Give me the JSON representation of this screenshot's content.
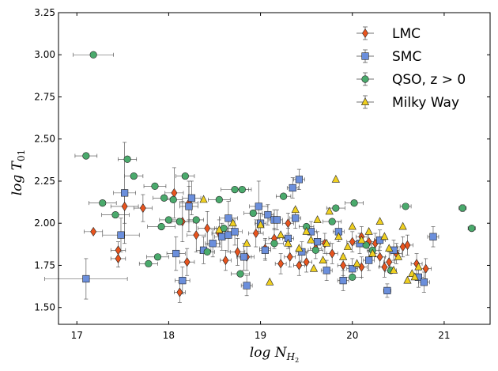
{
  "chart_data": {
    "type": "scatter",
    "xlabel_main": "log N",
    "xlabel_sub": "H",
    "xlabel_subsub": "2",
    "ylabel_main": "log T",
    "ylabel_sub": "01",
    "xlim": [
      16.8,
      21.5
    ],
    "ylim": [
      1.4,
      3.25
    ],
    "xticks": [
      17,
      18,
      19,
      20,
      21
    ],
    "yticks": [
      1.5,
      1.75,
      2.0,
      2.25,
      2.5,
      2.75,
      3.0,
      3.25
    ],
    "xtick_labels": [
      "17",
      "18",
      "19",
      "20",
      "21"
    ],
    "ytick_labels": [
      "1.50",
      "1.75",
      "2.00",
      "2.25",
      "2.50",
      "2.75",
      "3.00",
      "3.25"
    ],
    "legend_position": "top-right",
    "series": [
      {
        "name": "LMC",
        "marker": "diamond",
        "color": "#e8541e",
        "points": [
          [
            17.18,
            1.95,
            0.1,
            0
          ],
          [
            17.45,
            1.84,
            0.08,
            0.05
          ],
          [
            17.45,
            1.79,
            0.08,
            0.05
          ],
          [
            17.52,
            2.1,
            0.15,
            0.1
          ],
          [
            17.72,
            2.09,
            0.1,
            0.08
          ],
          [
            18.06,
            2.18,
            0.1,
            0.15
          ],
          [
            18.12,
            1.59,
            0.06,
            0.06
          ],
          [
            18.15,
            2.01,
            0.12,
            0.12
          ],
          [
            18.2,
            1.77,
            0.08,
            0.08
          ],
          [
            18.22,
            2.12,
            0.1,
            0.1
          ],
          [
            18.3,
            1.93,
            0.1,
            0.1
          ],
          [
            18.42,
            1.97,
            0.1,
            0.1
          ],
          [
            18.55,
            1.94,
            0.08,
            0.08
          ],
          [
            18.62,
            1.78,
            0.06,
            0.06
          ],
          [
            18.75,
            1.83,
            0.08,
            0.08
          ],
          [
            18.85,
            1.8,
            0.08,
            0.08
          ],
          [
            18.95,
            1.94,
            0.08,
            0.08
          ],
          [
            19.05,
            1.85,
            0.06,
            0.06
          ],
          [
            19.15,
            1.91,
            0.06,
            0.06
          ],
          [
            19.22,
            1.76,
            0.06,
            0.06
          ],
          [
            19.3,
            2.0,
            0.06,
            0.06
          ],
          [
            19.32,
            1.8,
            0.06,
            0.06
          ],
          [
            19.42,
            1.75,
            0.06,
            0.06
          ],
          [
            19.5,
            1.77,
            0.06,
            0.06
          ],
          [
            19.6,
            1.85,
            0.06,
            0.06
          ],
          [
            19.7,
            1.88,
            0.06,
            0.06
          ],
          [
            19.78,
            1.82,
            0.06,
            0.06
          ],
          [
            19.9,
            1.75,
            0.06,
            0.06
          ],
          [
            20.0,
            1.89,
            0.06,
            0.06
          ],
          [
            20.1,
            1.92,
            0.06,
            0.06
          ],
          [
            20.18,
            1.89,
            0.06,
            0.06
          ],
          [
            20.25,
            1.88,
            0.06,
            0.06
          ],
          [
            20.3,
            1.8,
            0.06,
            0.06
          ],
          [
            20.35,
            1.74,
            0.06,
            0.06
          ],
          [
            20.4,
            1.77,
            0.06,
            0.06
          ],
          [
            20.48,
            1.82,
            0.06,
            0.06
          ],
          [
            20.55,
            1.86,
            0.06,
            0.06
          ],
          [
            20.6,
            1.87,
            0.06,
            0.06
          ],
          [
            20.7,
            1.76,
            0.06,
            0.06
          ],
          [
            20.8,
            1.73,
            0.06,
            0.06
          ],
          [
            20.1,
            1.74,
            0.06,
            0.06
          ]
        ]
      },
      {
        "name": "SMC",
        "marker": "square",
        "color": "#6b8fdc",
        "points": [
          [
            17.1,
            1.67,
            0.45,
            0.12
          ],
          [
            17.48,
            1.93,
            0.2,
            0.1
          ],
          [
            17.52,
            2.18,
            0.12,
            0.3
          ],
          [
            18.08,
            1.82,
            0.1,
            0.1
          ],
          [
            18.15,
            1.66,
            0.08,
            0.08
          ],
          [
            18.22,
            2.1,
            0.1,
            0.15
          ],
          [
            18.25,
            2.15,
            0.1,
            0.1
          ],
          [
            18.38,
            1.84,
            0.08,
            0.08
          ],
          [
            18.48,
            1.88,
            0.08,
            0.08
          ],
          [
            18.58,
            1.92,
            0.08,
            0.08
          ],
          [
            18.65,
            1.93,
            0.1,
            0.1
          ],
          [
            18.65,
            2.03,
            0.1,
            0.1
          ],
          [
            18.72,
            1.95,
            0.08,
            0.08
          ],
          [
            18.82,
            1.8,
            0.08,
            0.08
          ],
          [
            18.85,
            1.63,
            0.06,
            0.06
          ],
          [
            18.98,
            2.1,
            0.1,
            0.15
          ],
          [
            19.0,
            2.0,
            0.06,
            0.06
          ],
          [
            19.05,
            1.84,
            0.06,
            0.06
          ],
          [
            19.08,
            2.05,
            0.06,
            0.06
          ],
          [
            19.15,
            2.02,
            0.06,
            0.06
          ],
          [
            19.18,
            2.02,
            0.06,
            0.06
          ],
          [
            19.3,
            1.91,
            0.06,
            0.06
          ],
          [
            19.35,
            2.21,
            0.06,
            0.06
          ],
          [
            19.42,
            2.26,
            0.06,
            0.06
          ],
          [
            19.45,
            1.83,
            0.06,
            0.06
          ],
          [
            19.55,
            1.95,
            0.06,
            0.06
          ],
          [
            19.62,
            1.89,
            0.06,
            0.06
          ],
          [
            19.72,
            1.72,
            0.06,
            0.06
          ],
          [
            19.85,
            1.95,
            0.06,
            0.06
          ],
          [
            19.9,
            1.66,
            0.06,
            0.06
          ],
          [
            20.0,
            1.73,
            0.06,
            0.06
          ],
          [
            20.08,
            1.88,
            0.06,
            0.06
          ],
          [
            20.18,
            1.78,
            0.06,
            0.06
          ],
          [
            20.3,
            1.9,
            0.06,
            0.06
          ],
          [
            20.38,
            1.6,
            0.04,
            0.04
          ],
          [
            20.45,
            1.84,
            0.06,
            0.06
          ],
          [
            20.72,
            1.68,
            0.06,
            0.06
          ],
          [
            20.78,
            1.65,
            0.06,
            0.06
          ],
          [
            20.88,
            1.92,
            0.06,
            0.06
          ],
          [
            19.38,
            2.03,
            0.06,
            0.06
          ]
        ]
      },
      {
        "name": "QSO, z > 0",
        "marker": "circle",
        "color": "#4aaa6c",
        "points": [
          [
            17.18,
            3.0,
            0.22,
            0
          ],
          [
            17.1,
            2.4,
            0.12,
            0
          ],
          [
            17.28,
            2.12,
            0.15,
            0
          ],
          [
            17.42,
            2.05,
            0.15,
            0
          ],
          [
            17.55,
            2.38,
            0.1,
            0
          ],
          [
            17.62,
            2.28,
            0.1,
            0
          ],
          [
            17.78,
            1.76,
            0.1,
            0
          ],
          [
            17.88,
            1.8,
            0.12,
            0
          ],
          [
            17.92,
            1.98,
            0.15,
            0
          ],
          [
            17.85,
            2.22,
            0.12,
            0
          ],
          [
            17.95,
            2.15,
            0.12,
            0
          ],
          [
            18.0,
            2.02,
            0.1,
            0
          ],
          [
            18.05,
            2.14,
            0.1,
            0
          ],
          [
            18.12,
            2.01,
            0.1,
            0
          ],
          [
            18.18,
            2.28,
            0.1,
            0
          ],
          [
            18.3,
            2.02,
            0.08,
            0
          ],
          [
            18.42,
            1.83,
            0.08,
            0
          ],
          [
            18.55,
            2.14,
            0.12,
            0
          ],
          [
            18.6,
            1.97,
            0.1,
            0
          ],
          [
            18.72,
            2.2,
            0.15,
            0
          ],
          [
            18.78,
            1.7,
            0.1,
            0
          ],
          [
            18.8,
            2.2,
            0.1,
            0
          ],
          [
            18.92,
            2.06,
            0.1,
            0
          ],
          [
            19.15,
            1.88,
            0.1,
            0
          ],
          [
            19.25,
            2.16,
            0.08,
            0
          ],
          [
            19.5,
            1.98,
            0.08,
            0
          ],
          [
            19.6,
            1.84,
            0.08,
            0
          ],
          [
            19.78,
            2.01,
            0.1,
            0
          ],
          [
            19.82,
            2.09,
            0.1,
            0
          ],
          [
            20.0,
            1.68,
            0.1,
            0
          ],
          [
            20.02,
            2.12,
            0.1,
            0
          ],
          [
            20.15,
            1.87,
            0.06,
            0
          ],
          [
            20.22,
            1.84,
            0.06,
            0
          ],
          [
            20.42,
            1.72,
            0.06,
            0
          ],
          [
            20.58,
            2.1,
            0.06,
            0
          ],
          [
            21.2,
            2.09,
            0.04,
            0.02
          ],
          [
            21.3,
            1.97,
            0.04,
            0
          ]
        ]
      },
      {
        "name": "Milky Way",
        "marker": "triangle",
        "color": "#f0d020",
        "points": [
          [
            18.38,
            2.14,
            0,
            0
          ],
          [
            18.55,
            1.96,
            0,
            0
          ],
          [
            18.7,
            2.0,
            0,
            0
          ],
          [
            18.85,
            1.88,
            0,
            0
          ],
          [
            19.0,
            1.99,
            0,
            0
          ],
          [
            19.1,
            1.65,
            0,
            0
          ],
          [
            19.22,
            1.93,
            0,
            0
          ],
          [
            19.3,
            1.88,
            0,
            0
          ],
          [
            19.38,
            2.08,
            0,
            0
          ],
          [
            19.42,
            1.85,
            0,
            0
          ],
          [
            19.5,
            1.95,
            0,
            0
          ],
          [
            19.55,
            1.9,
            0,
            0
          ],
          [
            19.62,
            2.02,
            0,
            0
          ],
          [
            19.68,
            1.78,
            0,
            0
          ],
          [
            19.72,
            1.88,
            0,
            0
          ],
          [
            19.75,
            2.07,
            0,
            0
          ],
          [
            19.82,
            2.26,
            0,
            0
          ],
          [
            19.85,
            1.92,
            0,
            0
          ],
          [
            19.9,
            1.8,
            0,
            0
          ],
          [
            19.95,
            1.86,
            0,
            0
          ],
          [
            20.0,
            1.98,
            0,
            0
          ],
          [
            20.05,
            1.76,
            0,
            0
          ],
          [
            20.1,
            1.9,
            0,
            0
          ],
          [
            20.18,
            1.95,
            0,
            0
          ],
          [
            20.22,
            1.82,
            0,
            0
          ],
          [
            20.3,
            2.01,
            0,
            0
          ],
          [
            20.35,
            1.92,
            0,
            0
          ],
          [
            20.4,
            1.85,
            0,
            0
          ],
          [
            20.45,
            1.72,
            0,
            0
          ],
          [
            20.5,
            1.8,
            0,
            0
          ],
          [
            20.55,
            1.98,
            0,
            0
          ],
          [
            20.6,
            1.66,
            0,
            0
          ],
          [
            20.65,
            1.7,
            0,
            0
          ],
          [
            20.72,
            1.74,
            0,
            0
          ],
          [
            20.68,
            1.68,
            0,
            0
          ],
          [
            19.58,
            1.73,
            0,
            0
          ]
        ]
      }
    ]
  }
}
